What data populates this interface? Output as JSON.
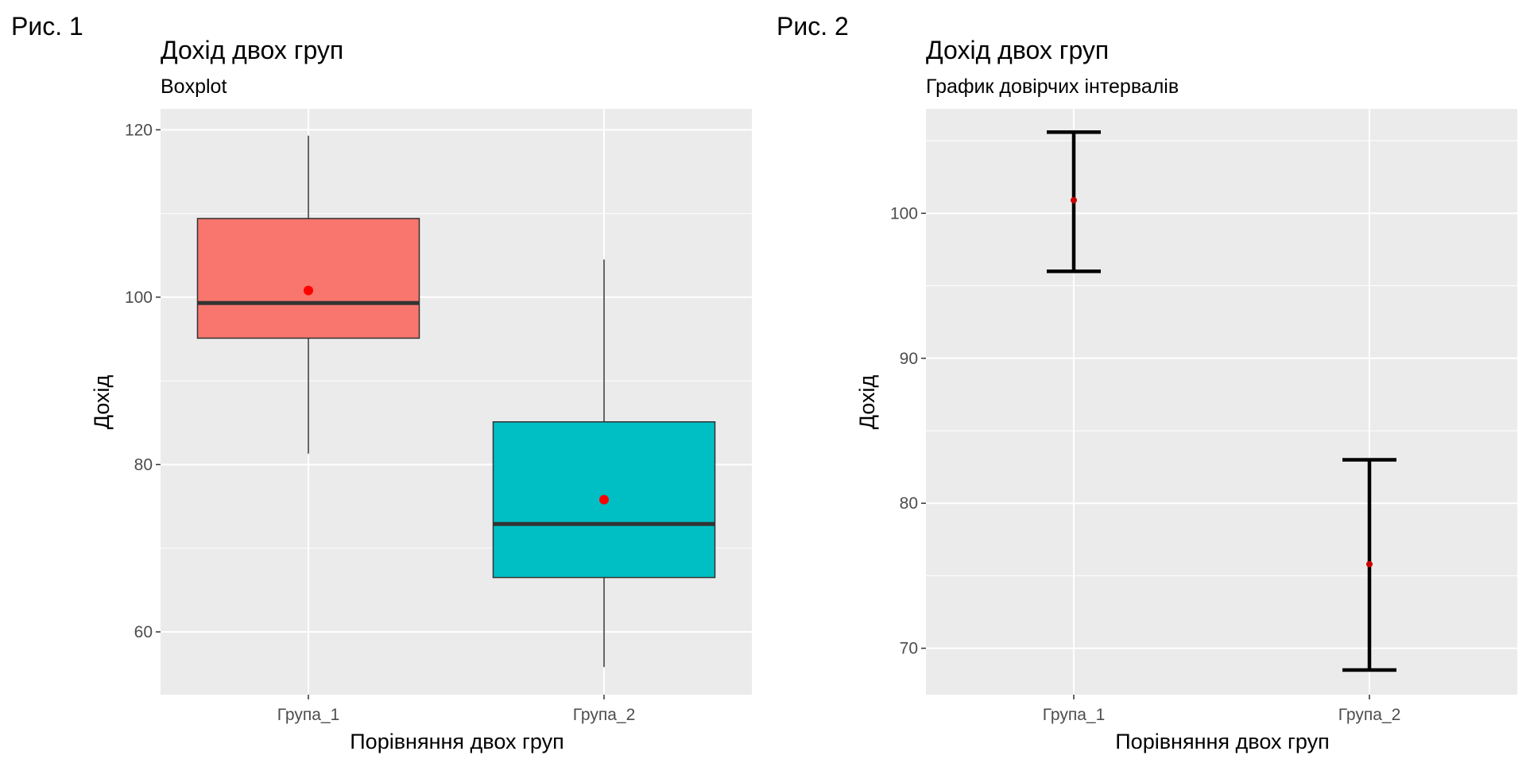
{
  "figures": [
    {
      "label": "Рис. 1"
    },
    {
      "label": "Рис. 2"
    }
  ],
  "chart_data": [
    {
      "type": "boxplot",
      "title": "Дохід двох груп",
      "subtitle": "Boxplot",
      "xlabel": "Порівняння двох груп",
      "ylabel": "Дохід",
      "categories": [
        "Група_1",
        "Група_2"
      ],
      "ylim": [
        52.5,
        122.5
      ],
      "yticks": [
        60,
        80,
        100,
        120
      ],
      "grid": true,
      "boxes": [
        {
          "category": "Група_1",
          "min": 81.3,
          "q1": 95.1,
          "median": 99.3,
          "q3": 109.4,
          "max": 119.3,
          "mean": 100.8,
          "fill": "#F8766D"
        },
        {
          "category": "Група_2",
          "min": 55.8,
          "q1": 66.5,
          "median": 72.9,
          "q3": 85.1,
          "max": 104.5,
          "mean": 75.8,
          "fill": "#00BFC4"
        }
      ],
      "colors": {
        "mean_point": "#FF0000",
        "panel": "#EBEBEB",
        "grid": "#FFFFFF"
      }
    },
    {
      "type": "errorbar",
      "title": "Дохід двох груп",
      "subtitle": "График довірчих інтервалів",
      "xlabel": "Порівняння двох груп",
      "ylabel": "Дохід",
      "categories": [
        "Група_1",
        "Група_2"
      ],
      "ylim": [
        66.8,
        107.2
      ],
      "yticks": [
        70,
        80,
        90,
        100
      ],
      "grid": true,
      "intervals": [
        {
          "category": "Група_1",
          "lower": 96.0,
          "mean": 100.9,
          "upper": 105.6
        },
        {
          "category": "Група_2",
          "lower": 68.5,
          "mean": 75.8,
          "upper": 83.0
        }
      ],
      "colors": {
        "mean_point": "#CC0000",
        "errorbar": "#000000",
        "panel": "#EBEBEB",
        "grid": "#FFFFFF"
      }
    }
  ]
}
